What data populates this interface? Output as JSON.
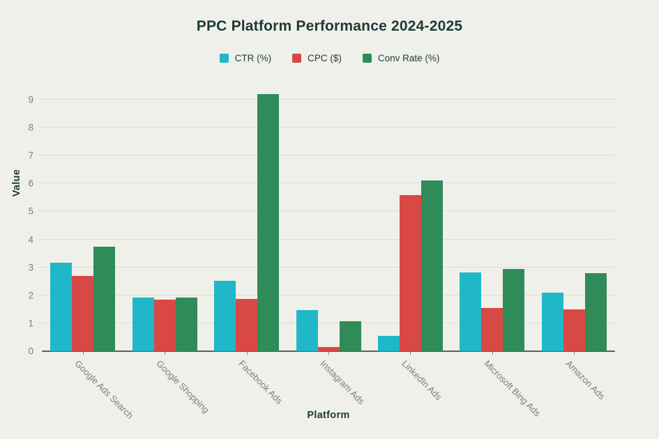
{
  "title": "PPC Platform Performance 2024-2025",
  "chart_data": {
    "type": "bar",
    "title": "PPC Platform Performance 2024-2025",
    "xlabel": "Platform",
    "ylabel": "Value",
    "categories": [
      "Google Ads Search",
      "Google Shopping",
      "Facebook Ads",
      "Instagram Ads",
      "LinkedIn Ads",
      "Microsoft Bing Ads",
      "Amazon Ads"
    ],
    "series": [
      {
        "name": "CTR (%)",
        "color": "#20b7c9",
        "values": [
          3.17,
          1.91,
          2.52,
          1.48,
          0.55,
          2.83,
          2.1
        ]
      },
      {
        "name": "CPC ($)",
        "color": "#d84845",
        "values": [
          2.69,
          1.85,
          1.88,
          0.15,
          5.58,
          1.54,
          1.5
        ]
      },
      {
        "name": "Conv Rate (%)",
        "color": "#2f8b58",
        "values": [
          3.75,
          1.91,
          9.21,
          1.08,
          6.1,
          2.94,
          2.8
        ]
      }
    ],
    "yticks": [
      0,
      1,
      2,
      3,
      4,
      5,
      6,
      7,
      8,
      9
    ],
    "ylim": [
      0,
      9.5
    ],
    "grid": true,
    "legend_position": "top"
  },
  "theme": {
    "background": "#f0f0ea",
    "title_color": "#1c3a38",
    "axis_title_color": "#1c3a38",
    "legend_text_color": "#1c3a38",
    "tick_label_color": "#7b7e7b",
    "gridline_color": "#dcdcd4",
    "baseline_color": "#5c5f5f"
  }
}
